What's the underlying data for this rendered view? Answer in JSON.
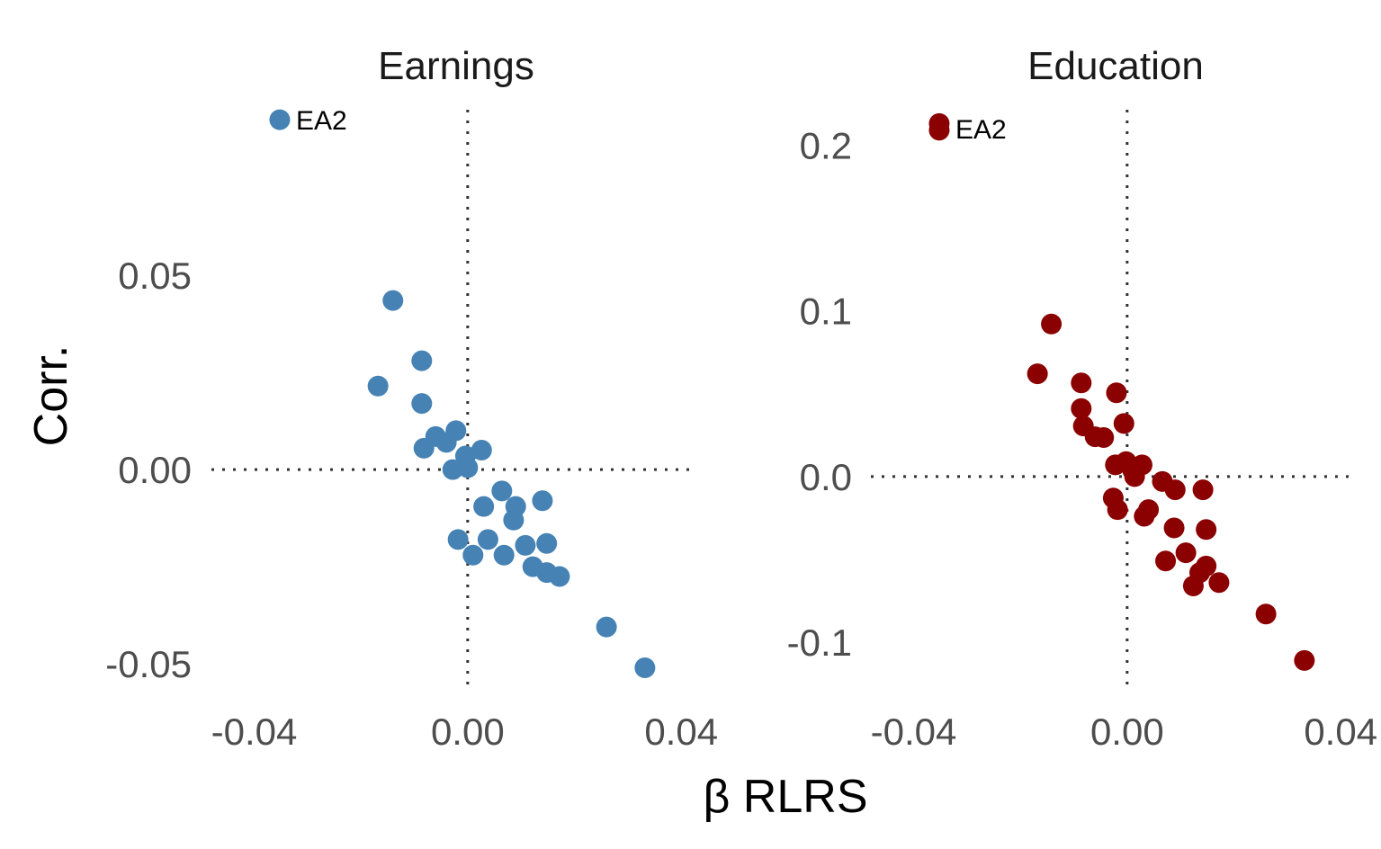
{
  "chart_data": [
    {
      "type": "scatter",
      "title": "Earnings",
      "xlabel": "β RLRS",
      "ylabel": "Corr.",
      "xlim": [
        -0.048,
        0.043
      ],
      "ylim": [
        -0.0555,
        0.0935
      ],
      "xticks": [
        "-0.04",
        "0.00",
        "0.04"
      ],
      "yticks": [
        "-0.05",
        "0.00",
        "0.05"
      ],
      "color": "#4682B4",
      "grid": false,
      "reference_lines": {
        "x": 0,
        "y": 0
      },
      "annotation": {
        "label": "EA2",
        "x": -0.0352,
        "y": 0.09
      },
      "points": [
        {
          "x": -0.0352,
          "y": 0.09
        },
        {
          "x": -0.014,
          "y": 0.0435
        },
        {
          "x": -0.0168,
          "y": 0.0215
        },
        {
          "x": -0.0086,
          "y": 0.028
        },
        {
          "x": -0.0086,
          "y": 0.017
        },
        {
          "x": -0.006,
          "y": 0.0085
        },
        {
          "x": -0.004,
          "y": 0.007
        },
        {
          "x": -0.0082,
          "y": 0.0055
        },
        {
          "x": -0.0022,
          "y": 0.01
        },
        {
          "x": -0.0004,
          "y": 0.0035
        },
        {
          "x": -0.0028,
          "y": 0.0
        },
        {
          "x": 0.0,
          "y": 0.0005
        },
        {
          "x": 0.0026,
          "y": 0.005
        },
        {
          "x": 0.0064,
          "y": -0.0055
        },
        {
          "x": 0.009,
          "y": -0.0095
        },
        {
          "x": 0.014,
          "y": -0.008
        },
        {
          "x": 0.003,
          "y": -0.0095
        },
        {
          "x": 0.0086,
          "y": -0.013
        },
        {
          "x": -0.0018,
          "y": -0.018
        },
        {
          "x": 0.0038,
          "y": -0.018
        },
        {
          "x": 0.001,
          "y": -0.022
        },
        {
          "x": 0.0068,
          "y": -0.022
        },
        {
          "x": 0.0108,
          "y": -0.0195
        },
        {
          "x": 0.0148,
          "y": -0.019
        },
        {
          "x": 0.0122,
          "y": -0.025
        },
        {
          "x": 0.0148,
          "y": -0.0265
        },
        {
          "x": 0.0172,
          "y": -0.0275
        },
        {
          "x": 0.026,
          "y": -0.0405
        },
        {
          "x": 0.0332,
          "y": -0.051
        }
      ]
    },
    {
      "type": "scatter",
      "title": "Education",
      "xlabel": "β RLRS",
      "ylabel": "Corr.",
      "xlim": [
        -0.048,
        0.043
      ],
      "ylim": [
        -0.126,
        0.2235
      ],
      "xticks": [
        "-0.04",
        "0.00",
        "0.04"
      ],
      "yticks": [
        "-0.1",
        "0.0",
        "0.1",
        "0.2"
      ],
      "color": "#8B0000",
      "grid": false,
      "reference_lines": {
        "x": 0,
        "y": 0
      },
      "annotation": {
        "label": "EA2",
        "x": -0.0352,
        "y": 0.21
      },
      "points": [
        {
          "x": -0.0352,
          "y": 0.213
        },
        {
          "x": -0.0352,
          "y": 0.209
        },
        {
          "x": -0.0142,
          "y": 0.092
        },
        {
          "x": -0.0168,
          "y": 0.062
        },
        {
          "x": -0.0086,
          "y": 0.0565
        },
        {
          "x": -0.002,
          "y": 0.0505
        },
        {
          "x": -0.0086,
          "y": 0.041
        },
        {
          "x": -0.0082,
          "y": 0.0305
        },
        {
          "x": -0.0006,
          "y": 0.032
        },
        {
          "x": -0.006,
          "y": 0.024
        },
        {
          "x": -0.0044,
          "y": 0.0235
        },
        {
          "x": -0.0022,
          "y": 0.007
        },
        {
          "x": -0.0002,
          "y": 0.009
        },
        {
          "x": 0.001,
          "y": 0.004
        },
        {
          "x": 0.0028,
          "y": 0.007
        },
        {
          "x": 0.0014,
          "y": 0.0
        },
        {
          "x": 0.0066,
          "y": -0.003
        },
        {
          "x": 0.009,
          "y": -0.008
        },
        {
          "x": 0.0142,
          "y": -0.008
        },
        {
          "x": -0.0026,
          "y": -0.013
        },
        {
          "x": -0.0018,
          "y": -0.02
        },
        {
          "x": 0.004,
          "y": -0.02
        },
        {
          "x": 0.0032,
          "y": -0.024
        },
        {
          "x": 0.0088,
          "y": -0.031
        },
        {
          "x": 0.0148,
          "y": -0.032
        },
        {
          "x": 0.011,
          "y": -0.046
        },
        {
          "x": 0.0072,
          "y": -0.051
        },
        {
          "x": 0.0148,
          "y": -0.054
        },
        {
          "x": 0.0136,
          "y": -0.058
        },
        {
          "x": 0.0172,
          "y": -0.064
        },
        {
          "x": 0.0124,
          "y": -0.066
        },
        {
          "x": 0.026,
          "y": -0.083
        },
        {
          "x": 0.0332,
          "y": -0.111
        }
      ]
    }
  ]
}
